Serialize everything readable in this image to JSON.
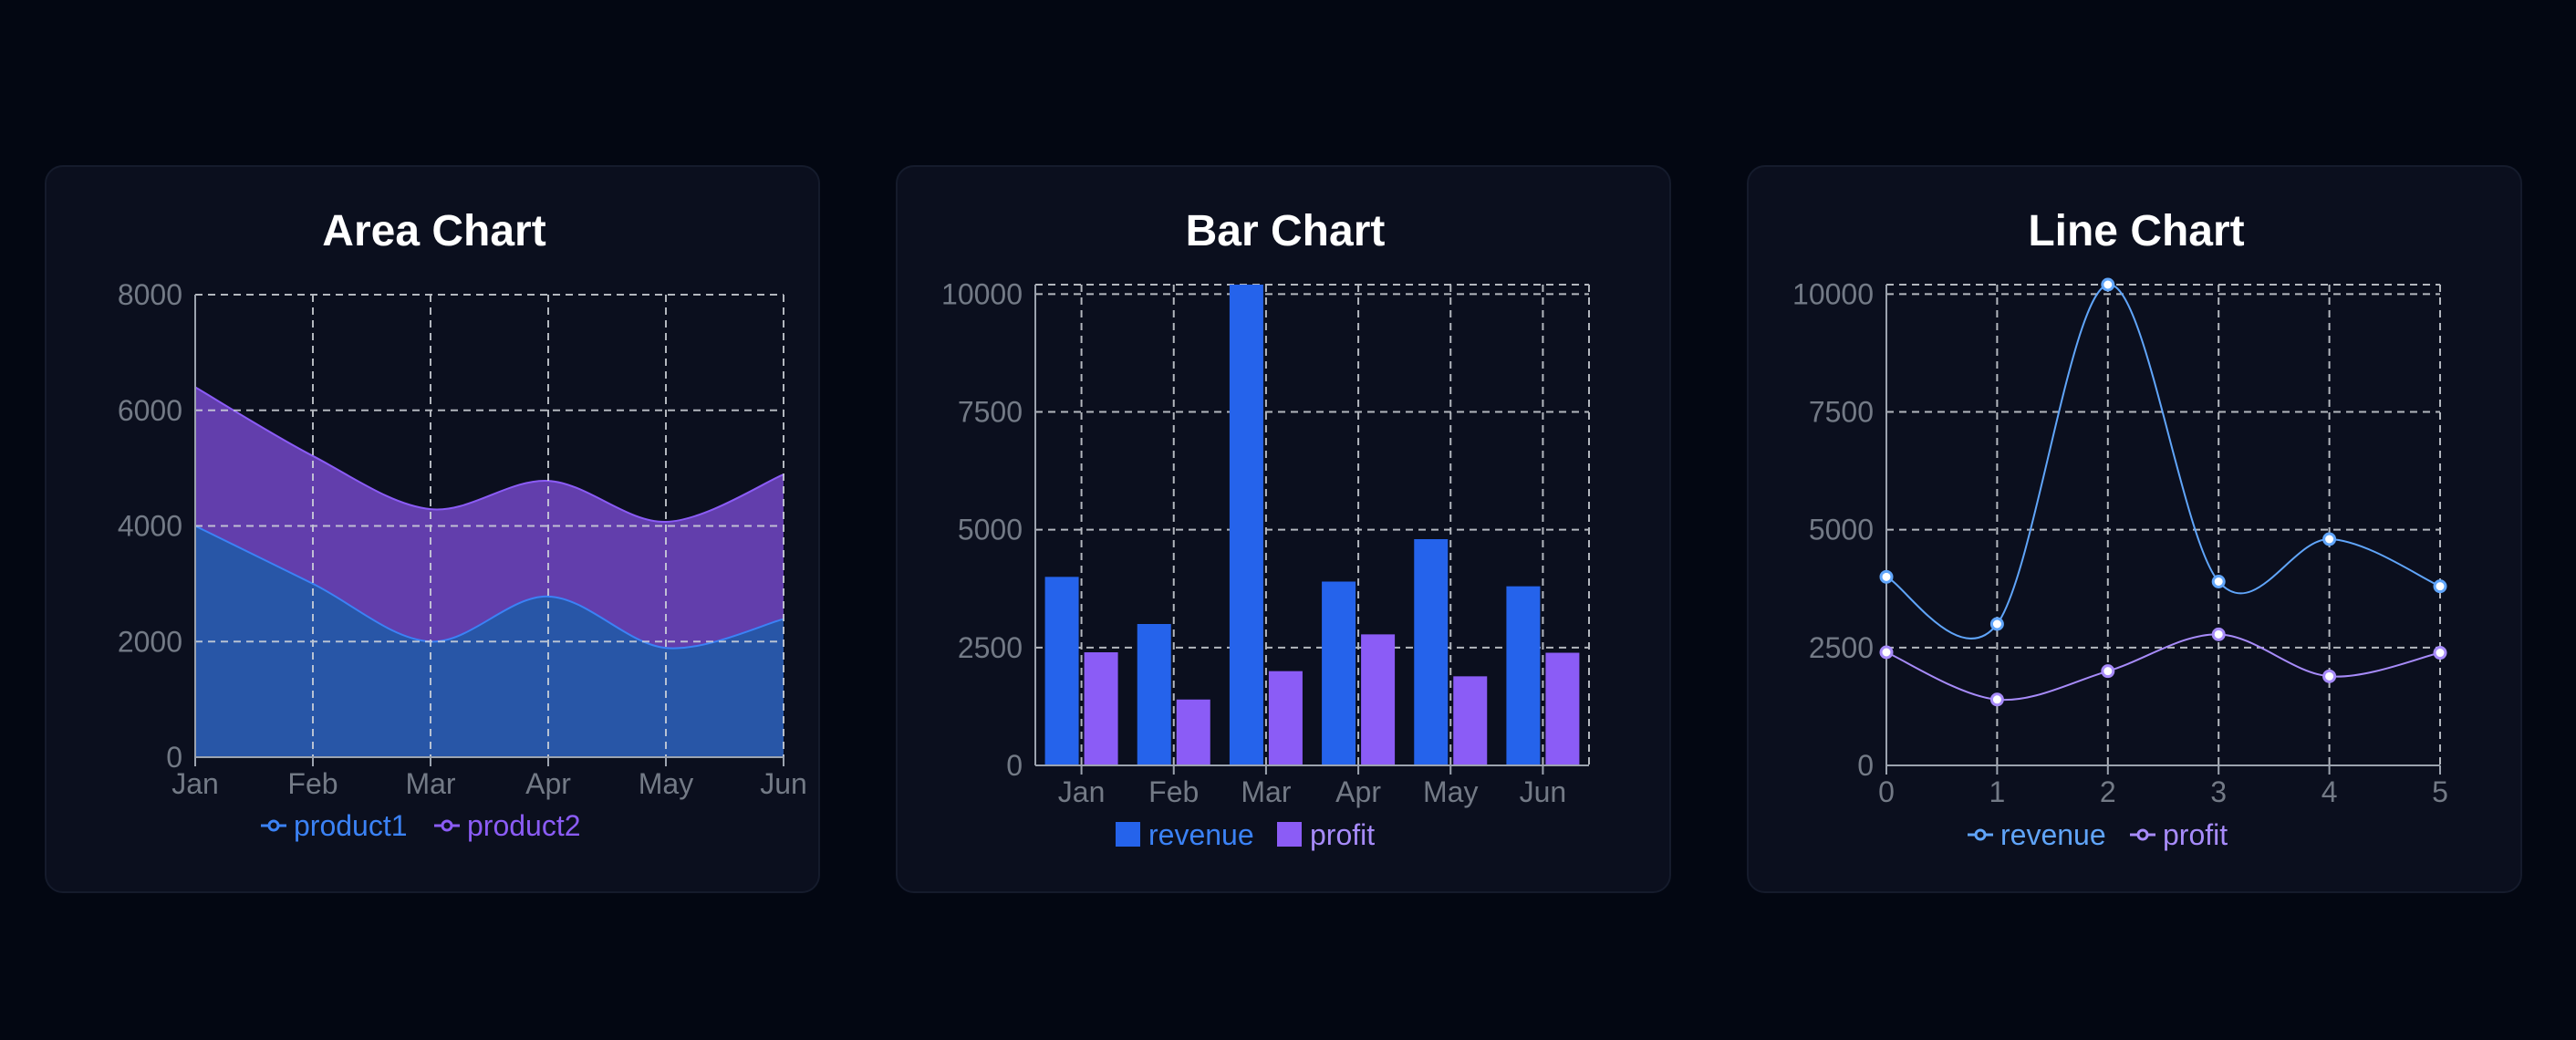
{
  "chart_data": [
    {
      "type": "area",
      "title": "Area Chart",
      "categories": [
        "Jan",
        "Feb",
        "Mar",
        "Apr",
        "May",
        "Jun"
      ],
      "stacked": true,
      "series": [
        {
          "name": "product1",
          "values": [
            4000,
            3000,
            2000,
            2780,
            1890,
            2390
          ],
          "color": "#3b82f6"
        },
        {
          "name": "product2",
          "values": [
            2400,
            2210,
            2290,
            2000,
            2181,
            2500
          ],
          "color": "#8b5cf6"
        }
      ],
      "ylim": [
        0,
        8000
      ],
      "yticks": [
        0,
        2000,
        4000,
        6000,
        8000
      ],
      "grid": true,
      "legend": "bottom"
    },
    {
      "type": "bar",
      "title": "Bar Chart",
      "categories": [
        "Jan",
        "Feb",
        "Mar",
        "Apr",
        "May",
        "Jun"
      ],
      "series": [
        {
          "name": "revenue",
          "values": [
            4000,
            3000,
            10200,
            3900,
            4800,
            3800
          ],
          "color": "#2563eb"
        },
        {
          "name": "profit",
          "values": [
            2400,
            1398,
            2000,
            2780,
            1890,
            2390
          ],
          "color": "#8b5cf6"
        }
      ],
      "ylim": [
        0,
        10200
      ],
      "yticks": [
        0,
        2500,
        5000,
        7500,
        10000
      ],
      "grid": true,
      "legend": "bottom"
    },
    {
      "type": "line",
      "title": "Line Chart",
      "x": [
        0,
        1,
        2,
        3,
        4,
        5
      ],
      "series": [
        {
          "name": "revenue",
          "values": [
            4000,
            3000,
            10200,
            3900,
            4800,
            3800
          ],
          "color": "#60a5fa"
        },
        {
          "name": "profit",
          "values": [
            2400,
            1398,
            2000,
            2780,
            1890,
            2390
          ],
          "color": "#a78bfa"
        }
      ],
      "ylim": [
        0,
        10200
      ],
      "yticks": [
        0,
        2500,
        5000,
        7500,
        10000
      ],
      "grid": true,
      "legend": "bottom"
    }
  ]
}
